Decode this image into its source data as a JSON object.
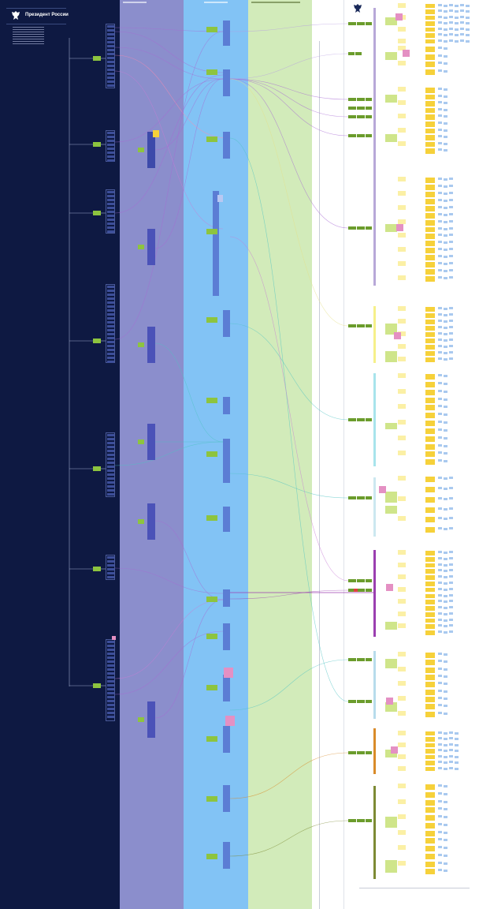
{
  "header": {
    "title": "Президент России",
    "emblem_icon": "double-headed-eagle-icon"
  },
  "bands": [
    {
      "name": "band-president",
      "color": "#0e1942"
    },
    {
      "name": "band-administration",
      "color": "#8b8ecc"
    },
    {
      "name": "band-government",
      "color": "#82c3f5"
    },
    {
      "name": "band-parliament",
      "color": "#d2ebba"
    },
    {
      "name": "band-regions",
      "color": "#ffffff"
    }
  ],
  "colors": {
    "green_node": "#8dc43f",
    "dark_green_node": "#6b9c2c",
    "blue_node": "#5b7dd4",
    "indigo_node": "#4b52b8",
    "light_blue_leaf": "#a9c9ef",
    "yellow_node": "#f6d13a",
    "pale_yellow_node": "#fbf0a5",
    "pink_node": "#e490c3",
    "purple_link": "#a86ad4",
    "teal_link": "#4fc3c3"
  }
}
